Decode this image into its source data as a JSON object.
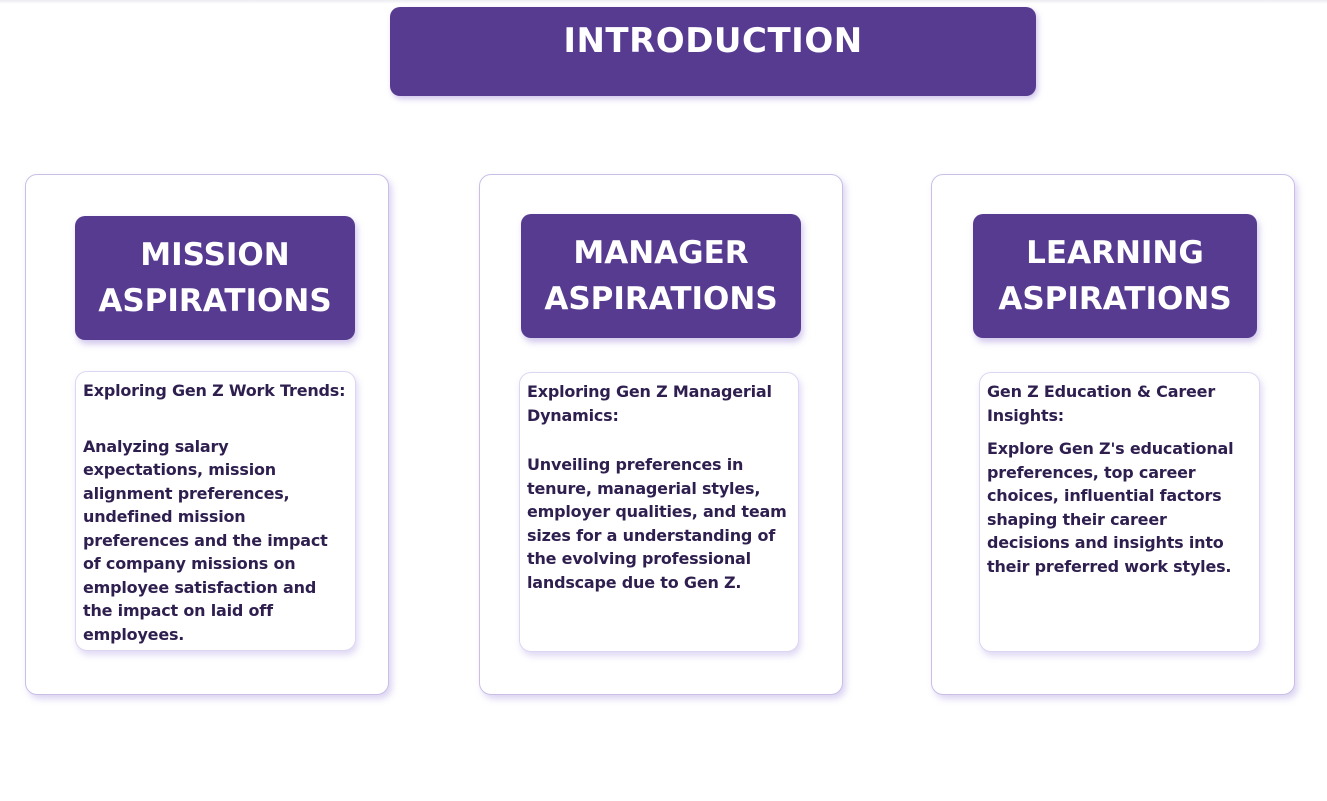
{
  "introduction": {
    "title": "INTRODUCTION"
  },
  "cards": [
    {
      "title_line1": "MISSION",
      "title_line2": "ASPIRATIONS",
      "heading": "Exploring Gen Z Work Trends:",
      "description": "Analyzing salary expectations, mission alignment preferences, undefined mission preferences and the impact of company missions on employee satisfaction and the impact on laid off employees."
    },
    {
      "title_line1": "MANAGER",
      "title_line2": "ASPIRATIONS",
      "heading": "Exploring Gen Z Managerial Dynamics:",
      "description": "Unveiling preferences in tenure, managerial styles, employer qualities, and team sizes for a understanding of the evolving professional landscape due to Gen Z."
    },
    {
      "title_line1": "LEARNING",
      "title_line2": "ASPIRATIONS",
      "heading": "Gen Z Education & Career Insights:",
      "description": "Explore Gen Z's educational preferences, top career choices, influential factors shaping their career decisions and insights into their preferred work styles."
    }
  ],
  "colors": {
    "accent": "#573b91",
    "body_text": "#2e1f4f",
    "border": "#c9bfe6"
  }
}
